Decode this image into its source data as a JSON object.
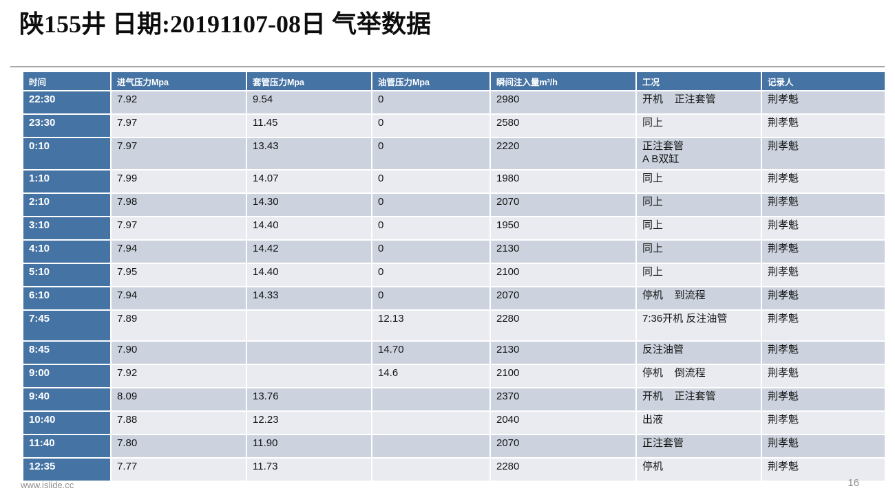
{
  "title": "陕155井 日期:20191107-08日 气举数据",
  "table": {
    "columns": [
      "时间",
      "进气压力Mpa",
      "套管压力Mpa",
      "油管压力Mpa",
      "瞬间注入量m³/h",
      "工况",
      "记录人"
    ],
    "rows": [
      [
        "22:30",
        "7.92",
        "9.54",
        "0",
        "2980",
        "开机    正注套管",
        "荆孝魁"
      ],
      [
        "23:30",
        "7.97",
        "11.45",
        "0",
        "2580",
        "同上",
        "荆孝魁"
      ],
      [
        "0:10",
        "7.97",
        "13.43",
        "0",
        "2220",
        "正注套管\nA B双缸",
        "荆孝魁"
      ],
      [
        "1:10",
        "7.99",
        "14.07",
        "0",
        "1980",
        "同上",
        "荆孝魁"
      ],
      [
        "2:10",
        "7.98",
        "14.30",
        "0",
        "2070",
        "同上",
        "荆孝魁"
      ],
      [
        "3:10",
        "7.97",
        "14.40",
        "0",
        "1950",
        "同上",
        "荆孝魁"
      ],
      [
        "4:10",
        "7.94",
        "14.42",
        "0",
        "2130",
        "同上",
        "荆孝魁"
      ],
      [
        "5:10",
        "7.95",
        "14.40",
        "0",
        "2100",
        "同上",
        "荆孝魁"
      ],
      [
        "6:10",
        "7.94",
        "14.33",
        "0",
        "2070",
        "停机    到流程",
        "荆孝魁"
      ],
      [
        "7:45",
        "7.89",
        "",
        "12.13",
        "2280",
        "7:36开机 反注油管",
        "荆孝魁"
      ],
      [
        "8:45",
        "7.90",
        "",
        "14.70",
        "2130",
        "反注油管",
        "荆孝魁"
      ],
      [
        "9:00",
        "7.92",
        "",
        "14.6",
        "2100",
        "停机    倒流程",
        "荆孝魁"
      ],
      [
        "9:40",
        "8.09",
        "13.76",
        "",
        "2370",
        "开机    正注套管",
        "荆孝魁"
      ],
      [
        "10:40",
        "7.88",
        "12.23",
        "",
        "2040",
        "出液",
        "荆孝魁"
      ],
      [
        "11:40",
        "7.80",
        "11.90",
        "",
        "2070",
        "正注套管",
        "荆孝魁"
      ],
      [
        "12:35",
        "7.77",
        "11.73",
        "",
        "2280",
        "停机",
        "荆孝魁"
      ]
    ]
  },
  "footer": {
    "website": "www.islide.cc",
    "page_number": "16"
  },
  "colors": {
    "header_bg": "#4573a4",
    "time_column_bg": "#4573a4",
    "row_band_dark": "#ccd3de",
    "row_band_light": "#e9ebf1",
    "title_rule": "#a6a6a6",
    "footer_text": "#8c8c8c"
  }
}
